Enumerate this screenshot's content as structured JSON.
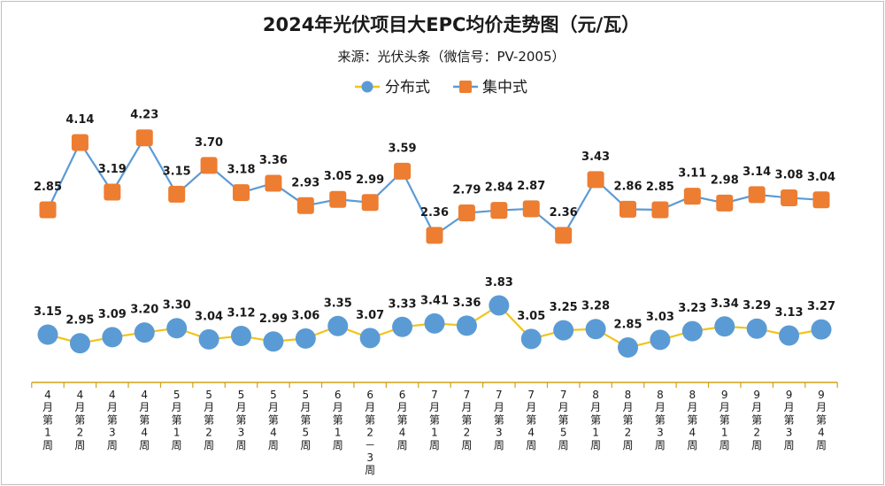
{
  "chart_data": {
    "type": "line",
    "title": "2024年光伏项目大EPC均价走势图（元/瓦）",
    "subtitle": "来源：光伏头条（微信号：PV-2005）",
    "categories": [
      "4月第1周",
      "4月第2周",
      "4月第3周",
      "4月第4周",
      "5月第1周",
      "5月第2周",
      "5月第3周",
      "5月第4周",
      "5月第5周",
      "6月第1周",
      "6月第2－3周",
      "6月第4周",
      "7月第1周",
      "7月第2周",
      "7月第3周",
      "7月第4周",
      "7月第5周",
      "8月第1周",
      "8月第2周",
      "8月第3周",
      "8月第4周",
      "9月第1周",
      "9月第2周",
      "9月第3周",
      "9月第4周"
    ],
    "series": [
      {
        "name": "分布式",
        "color": "#5b9bd5",
        "line_color": "#f0c419",
        "values": [
          3.15,
          2.95,
          3.09,
          3.2,
          3.3,
          3.04,
          3.12,
          2.99,
          3.06,
          3.35,
          3.07,
          3.33,
          3.41,
          3.36,
          3.83,
          3.05,
          3.25,
          3.28,
          2.85,
          3.03,
          3.23,
          3.34,
          3.29,
          3.13,
          3.27
        ]
      },
      {
        "name": "集中式",
        "color": "#ed7d31",
        "line_color": "#5b9bd5",
        "values": [
          2.85,
          4.14,
          3.19,
          4.23,
          3.15,
          3.7,
          3.18,
          3.36,
          2.93,
          3.05,
          2.99,
          3.59,
          2.36,
          2.79,
          2.84,
          2.87,
          2.36,
          3.43,
          2.86,
          2.85,
          3.11,
          2.98,
          3.14,
          3.08,
          3.04
        ]
      }
    ],
    "value_labels": {
      "分布式": [
        "3.15",
        "2.95",
        "3.09",
        "3.20",
        "3.30",
        "3.04",
        "3.12",
        "2.99",
        "3.06",
        "3.35",
        "3.07",
        "3.33",
        "3.41",
        "3.36",
        "3.83",
        "3.05",
        "3.25",
        "3.28",
        "2.85",
        "3.03",
        "3.23",
        "3.34",
        "3.29",
        "3.13",
        "3.27"
      ],
      "集中式": [
        "2.85",
        "4.14",
        "3.19",
        "4.23",
        "3.15",
        "3.70",
        "3.18",
        "3.36",
        "2.93",
        "3.05",
        "2.99",
        "3.59",
        "2.36",
        "2.79",
        "2.84",
        "2.87",
        "2.36",
        "3.43",
        "2.86",
        "2.85",
        "3.11",
        "2.98",
        "3.14",
        "3.08",
        "3.04"
      ]
    },
    "legend_position": "top-center",
    "grid": false
  }
}
